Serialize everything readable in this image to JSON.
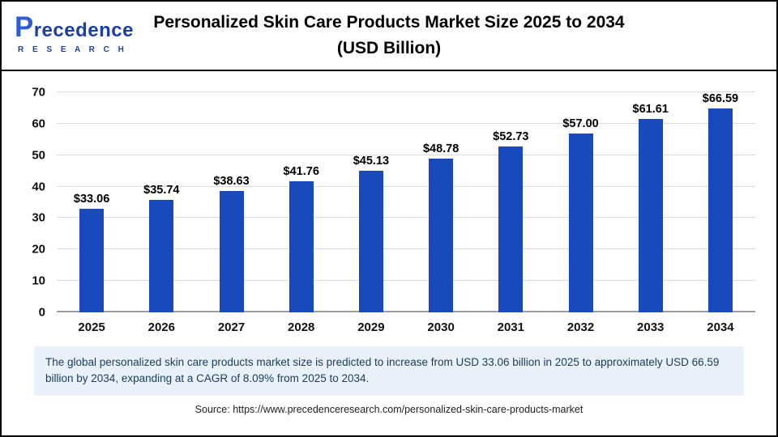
{
  "header": {
    "logo": {
      "name": "Precedence",
      "subtitle": "R E S E A R C H"
    },
    "title_line1": "Personalized Skin Care Products Market Size 2025 to 2034",
    "title_line2": "(USD Billion)"
  },
  "chart_data": {
    "type": "bar",
    "title": "Personalized Skin Care Products Market Size 2025 to 2034 (USD Billion)",
    "categories": [
      "2025",
      "2026",
      "2027",
      "2028",
      "2029",
      "2030",
      "2031",
      "2032",
      "2033",
      "2034"
    ],
    "values": [
      33.06,
      35.74,
      38.63,
      41.76,
      45.13,
      48.78,
      52.73,
      57.0,
      61.61,
      66.59
    ],
    "value_labels": [
      "$33.06",
      "$35.74",
      "$38.63",
      "$41.76",
      "$45.13",
      "$48.78",
      "$52.73",
      "$57.00",
      "$61.61",
      "$66.59"
    ],
    "xlabel": "",
    "ylabel": "",
    "ylim": [
      0,
      70
    ],
    "ytick_step": 10,
    "grid": true,
    "legend": "none",
    "bar_color": "#1A49BE"
  },
  "note": {
    "text": "The global personalized skin care products market size is predicted to increase from USD 33.06 billion in 2025 to approximately USD 66.59 billion by 2034, expanding at a CAGR of 8.09% from 2025 to 2034."
  },
  "source": {
    "text": "Source: https://www.precedenceresearch.com/personalized-skin-care-products-market"
  }
}
